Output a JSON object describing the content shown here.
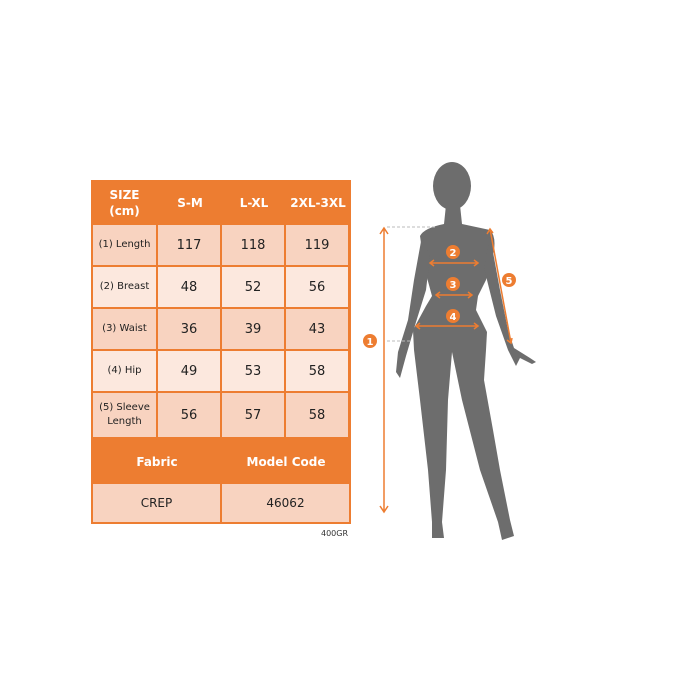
{
  "table": {
    "header": [
      "SIZE\n(cm)",
      "S-M",
      "L-XL",
      "2XL-3XL"
    ],
    "rows": [
      {
        "label": "(1) Length",
        "values": [
          "117",
          "118",
          "119"
        ]
      },
      {
        "label": "(2) Breast",
        "values": [
          "48",
          "52",
          "56"
        ]
      },
      {
        "label": "(3) Waist",
        "values": [
          "36",
          "39",
          "43"
        ]
      },
      {
        "label": "(4) Hip",
        "values": [
          "49",
          "53",
          "58"
        ]
      },
      {
        "label": "(5) Sleeve Length",
        "values": [
          "56",
          "57",
          "58"
        ]
      }
    ],
    "footer_header": [
      "Fabric",
      "Model Code"
    ],
    "footer_values": [
      "CREP",
      "46062"
    ]
  },
  "weight_note": "400GR",
  "diagram": {
    "markers": [
      "1",
      "2",
      "3",
      "4",
      "5"
    ]
  },
  "colors": {
    "accent": "#ed7d31",
    "cell_dark": "#f8d3c0",
    "cell_light": "#fce8de",
    "silhouette": "#6d6d6d"
  }
}
